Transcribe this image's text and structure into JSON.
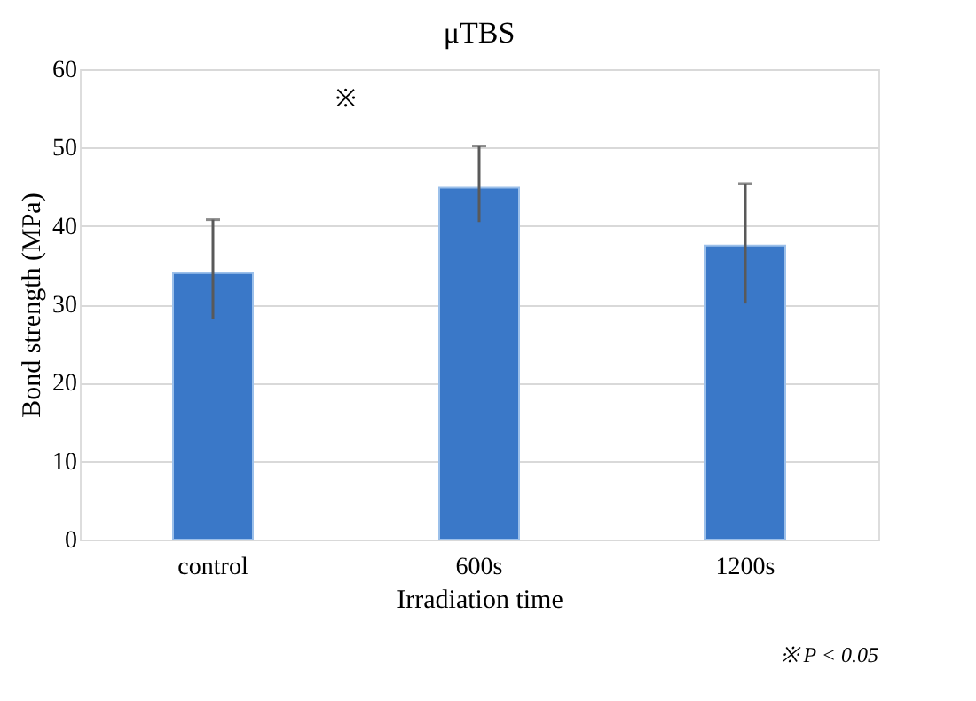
{
  "chart_data": {
    "type": "bar",
    "title": "μTBS",
    "xlabel": "Irradiation time",
    "ylabel": "Bond strength (MPa)",
    "categories": [
      "control",
      "600s",
      "1200s"
    ],
    "values": [
      34.0,
      44.9,
      37.5
    ],
    "errors": [
      [
        28.1,
        40.8
      ],
      [
        40.5,
        50.2
      ],
      [
        30.1,
        45.4
      ]
    ],
    "color": "#3a78c8",
    "ylim": [
      0,
      60
    ],
    "yticks": [
      0,
      10,
      20,
      30,
      40,
      50,
      60
    ],
    "grid": "y",
    "annotations": [
      "※",
      "※ P < 0.05"
    ]
  }
}
